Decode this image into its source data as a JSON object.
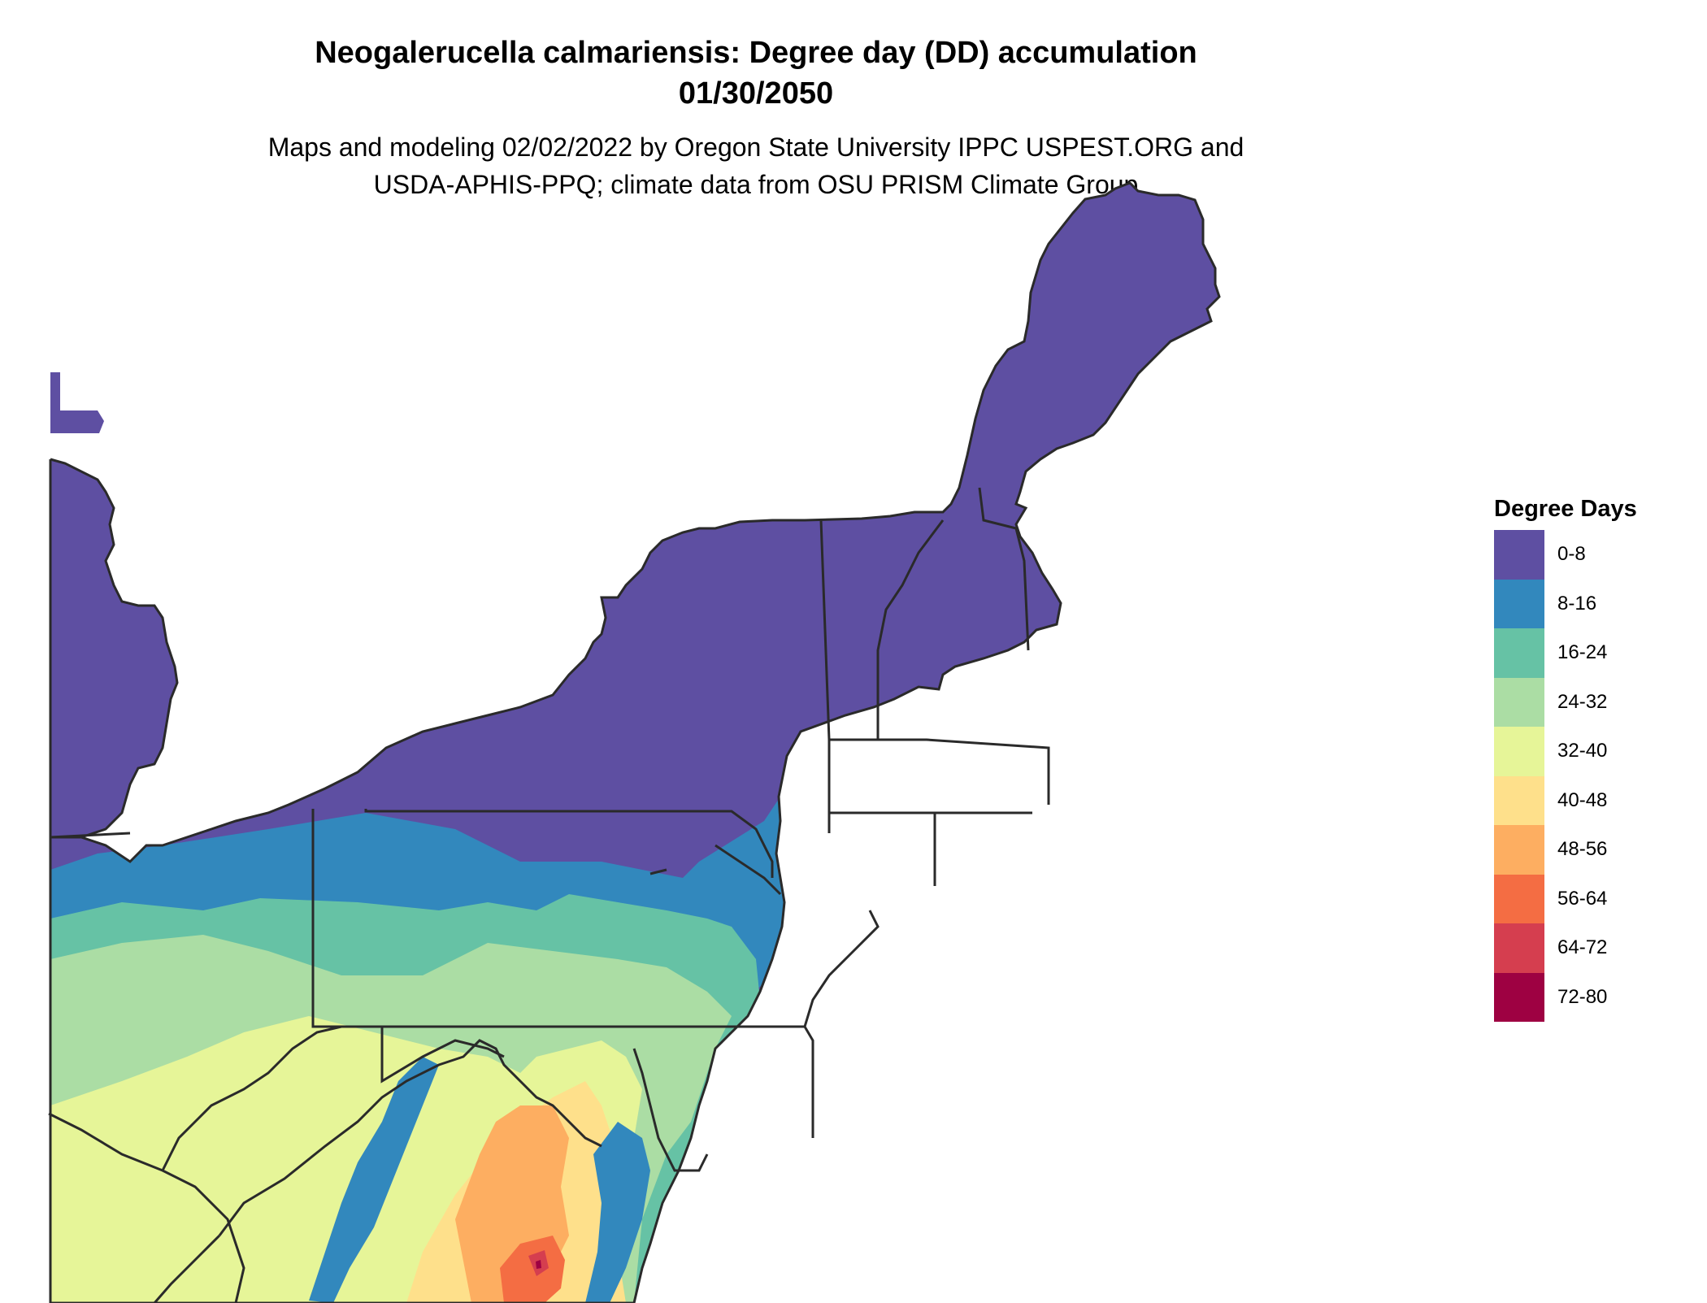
{
  "title_line1": "Neogalerucella calmariensis: Degree day (DD) accumulation",
  "title_line2": "01/30/2050",
  "subtitle_line1": "Maps and modeling 02/02/2022 by Oregon State University IPPC USPEST.ORG and",
  "subtitle_line2": "USDA-APHIS-PPQ; climate data from OSU PRISM Climate Group",
  "legend": {
    "title": "Degree Days",
    "items": [
      {
        "label": "0-8",
        "color": "#5E4FA2"
      },
      {
        "label": "8-16",
        "color": "#3288BD"
      },
      {
        "label": "16-24",
        "color": "#66C2A5"
      },
      {
        "label": "24-32",
        "color": "#ABDDA4"
      },
      {
        "label": "32-40",
        "color": "#E6F598"
      },
      {
        "label": "40-48",
        "color": "#FEE08B"
      },
      {
        "label": "48-56",
        "color": "#FDAE61"
      },
      {
        "label": "56-64",
        "color": "#F46D43"
      },
      {
        "label": "64-72",
        "color": "#D53E4F"
      },
      {
        "label": "72-80",
        "color": "#9E0142"
      }
    ]
  }
}
